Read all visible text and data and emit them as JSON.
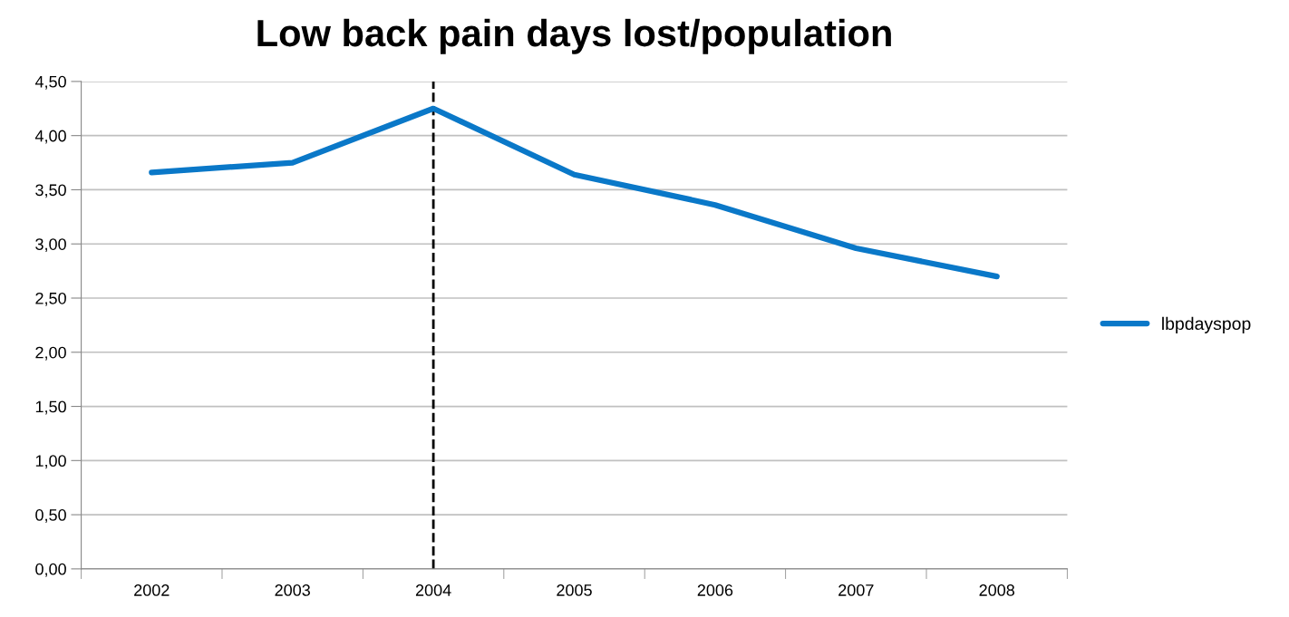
{
  "chart_data": {
    "type": "line",
    "title": "Low back pain days lost/population",
    "categories": [
      "2002",
      "2003",
      "2004",
      "2005",
      "2006",
      "2007",
      "2008"
    ],
    "series": [
      {
        "name": "lbpdayspop",
        "color": "#0a78c8",
        "values": [
          3.66,
          3.75,
          4.25,
          3.64,
          3.36,
          2.96,
          2.7
        ]
      }
    ],
    "ylim": [
      0,
      4.5
    ],
    "yticks": [
      {
        "value": 0,
        "label": "0,00"
      },
      {
        "value": 0.5,
        "label": "0,50"
      },
      {
        "value": 1,
        "label": "1,00"
      },
      {
        "value": 1.5,
        "label": "1,50"
      },
      {
        "value": 2,
        "label": "2,00"
      },
      {
        "value": 2.5,
        "label": "2,50"
      },
      {
        "value": 3,
        "label": "3,00"
      },
      {
        "value": 3.5,
        "label": "3,50"
      },
      {
        "value": 4,
        "label": "4,00"
      },
      {
        "value": 4.5,
        "label": "4,50"
      }
    ],
    "ref_lines": [
      {
        "axis": "x",
        "value": "2004",
        "color": "#000000",
        "line_style": "dashed"
      }
    ],
    "grid": "y",
    "legend": "right",
    "marker": "none",
    "line_style": "solid"
  }
}
